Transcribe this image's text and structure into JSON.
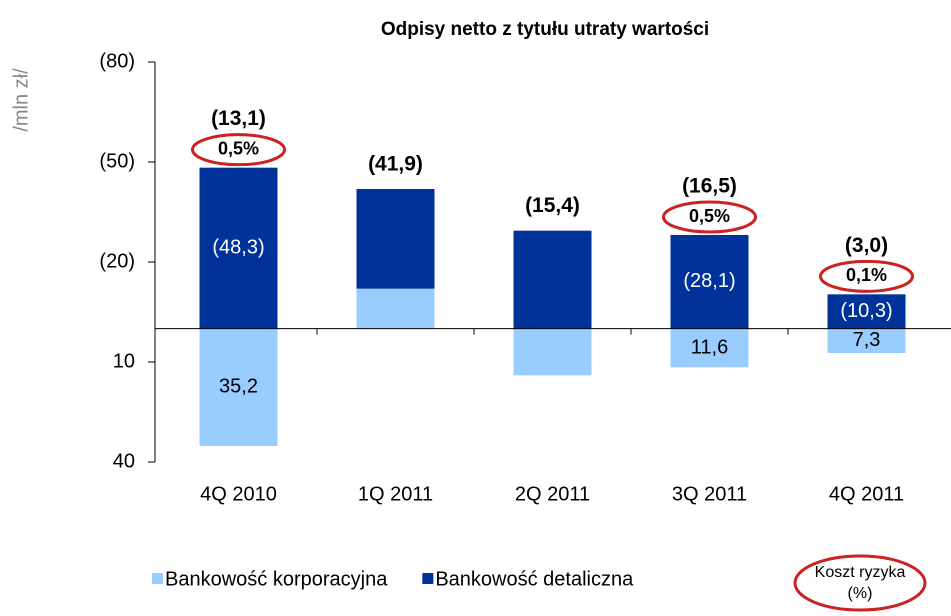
{
  "chart_data": {
    "type": "bar",
    "stacked": true,
    "title": "Odpisy netto z tytułu utraty wartości",
    "y_label": "/mln zł/",
    "categories": [
      "4Q 2010",
      "1Q 2011",
      "2Q 2011",
      "3Q 2011",
      "4Q 2011"
    ],
    "series": [
      {
        "name": "Bankowość korporacyjna",
        "color": "#99ccff",
        "label_color": "#000000",
        "values": [
          35.2,
          -12,
          14,
          11.6,
          7.3
        ],
        "value_labels": [
          "35,2",
          null,
          null,
          "11,6",
          "7,3"
        ]
      },
      {
        "name": "Bankowość detaliczna",
        "color": "#003399",
        "label_color": "#ffffff",
        "values": [
          -48.3,
          -29.9,
          -29.4,
          -28.1,
          -10.3
        ],
        "value_labels": [
          "(48,3)",
          null,
          null,
          "(28,1)",
          "(10,3)"
        ]
      }
    ],
    "totals": {
      "values": [
        -13.1,
        -41.9,
        -15.4,
        -16.5,
        -3.0
      ],
      "value_labels": [
        "(13,1)",
        "(41,9)",
        "(15,4)",
        "(16,5)",
        "(3,0)"
      ]
    },
    "risk_cost": {
      "legend": [
        "Koszt ryzyka",
        "(%)"
      ],
      "color": "#cc2222",
      "values": [
        0.5,
        null,
        null,
        0.5,
        0.1
      ],
      "value_labels": [
        "0,5%",
        null,
        null,
        "0,5%",
        "0,1%"
      ]
    },
    "ylim": [
      40,
      -80
    ],
    "yticks": [
      {
        "value": -80,
        "label": "(80)"
      },
      {
        "value": -50,
        "label": "(50)"
      },
      {
        "value": -20,
        "label": "(20)"
      },
      10,
      40
    ]
  }
}
